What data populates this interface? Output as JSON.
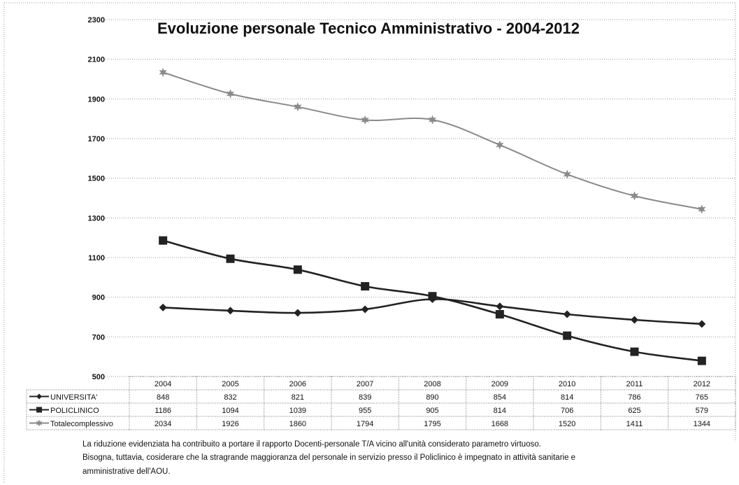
{
  "chart_data": {
    "type": "line",
    "title": "Evoluzione personale Tecnico Amministrativo - 2004-2012",
    "categories": [
      "2004",
      "2005",
      "2006",
      "2007",
      "2008",
      "2009",
      "2010",
      "2011",
      "2012"
    ],
    "ylim": [
      500,
      2300
    ],
    "yticks": [
      "2300",
      "2100",
      "1900",
      "1700",
      "1500",
      "1300",
      "1100",
      "900",
      "700",
      "500"
    ],
    "grid": "horizontal dotted",
    "legend": "in data table, left",
    "series": [
      {
        "name": "UNIVERSITA'",
        "marker": "diamond",
        "color": "#222222",
        "values": [
          848,
          832,
          821,
          839,
          890,
          854,
          814,
          786,
          765
        ],
        "labels": [
          "848",
          "832",
          "821",
          "839",
          "890",
          "854",
          "814",
          "786",
          "765"
        ]
      },
      {
        "name": "POLICLINICO",
        "marker": "square",
        "color": "#222222",
        "values": [
          1186,
          1094,
          1039,
          955,
          905,
          814,
          706,
          625,
          579
        ],
        "labels": [
          "1186",
          "1094",
          "1039",
          "955",
          "905",
          "814",
          "706",
          "625",
          "579"
        ]
      },
      {
        "name": "Totalecomplessivo",
        "marker": "star",
        "color": "#8a8a8a",
        "values": [
          2034,
          1926,
          1860,
          1794,
          1795,
          1668,
          1520,
          1411,
          1344
        ],
        "labels": [
          "2034",
          "1926",
          "1860",
          "1794",
          "1795",
          "1668",
          "1520",
          "1411",
          "1344"
        ]
      }
    ]
  },
  "notes": {
    "line1": "La riduzione evidenziata ha contribuito  a portare il rapporto Docenti-personale T/A vicino all'unità considerato parametro virtuoso.",
    "line2": "Bisogna, tuttavia, cosiderare che la stragrande maggioranza del personale in servizio presso il Policlinico è impegnato in attività sanitarie e",
    "line3": "amministrative dell'AOU."
  }
}
